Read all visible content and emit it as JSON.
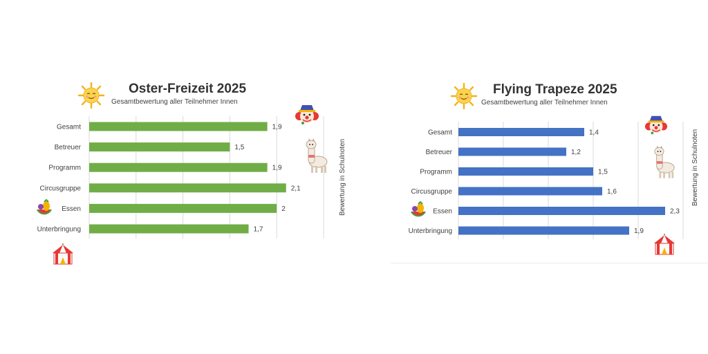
{
  "charts": [
    {
      "title": "Oster-Freizeit 2025",
      "subtitle": "Gesamtbewertung aller Teilnehmer Innen",
      "axis_title": "Bewertung in Schulnoten",
      "bar_color": "#70ad47",
      "icons": [
        "sun-icon",
        "clown-icon",
        "llama-icon",
        "fruit-icon",
        "circus-tent-icon"
      ]
    },
    {
      "title": "Flying Trapeze 2025",
      "subtitle": "Gesamtbewertung aller Teilnehmer Innen",
      "axis_title": "Bewertung in Schulnoten",
      "bar_color": "#4472c4",
      "icons": [
        "sun-icon",
        "clown-icon",
        "llama-icon",
        "fruit-icon",
        "circus-tent-icon"
      ]
    }
  ],
  "chart_data": [
    {
      "type": "bar",
      "orientation": "horizontal",
      "title": "Oster-Freizeit 2025",
      "subtitle": "Gesamtbewertung aller Teilnehmer Innen",
      "xlabel": "",
      "ylabel": "Bewertung in Schulnoten",
      "categories": [
        "Gesamt",
        "Betreuer",
        "Programm",
        "Circusgruppe",
        "Essen",
        "Unterbringung"
      ],
      "values": [
        1.9,
        1.5,
        1.9,
        2.1,
        2,
        1.7
      ],
      "value_labels": [
        "1,9",
        "1,5",
        "1,9",
        "2,1",
        "2",
        "1,7"
      ],
      "xlim": [
        0,
        2.5
      ],
      "grid": true,
      "legend": "none",
      "color": "#70ad47"
    },
    {
      "type": "bar",
      "orientation": "horizontal",
      "title": "Flying Trapeze 2025",
      "subtitle": "Gesamtbewertung aller Teilnehmer Innen",
      "xlabel": "",
      "ylabel": "Bewertung in Schulnoten",
      "categories": [
        "Gesamt",
        "Betreuer",
        "Programm",
        "Circusgruppe",
        "Essen",
        "Unterbringung"
      ],
      "values": [
        1.4,
        1.2,
        1.5,
        1.6,
        2.3,
        1.9
      ],
      "value_labels": [
        "1,4",
        "1,2",
        "1,5",
        "1,6",
        "2,3",
        "1,9"
      ],
      "xlim": [
        0,
        2.5
      ],
      "grid": true,
      "legend": "none",
      "color": "#4472c4"
    }
  ]
}
